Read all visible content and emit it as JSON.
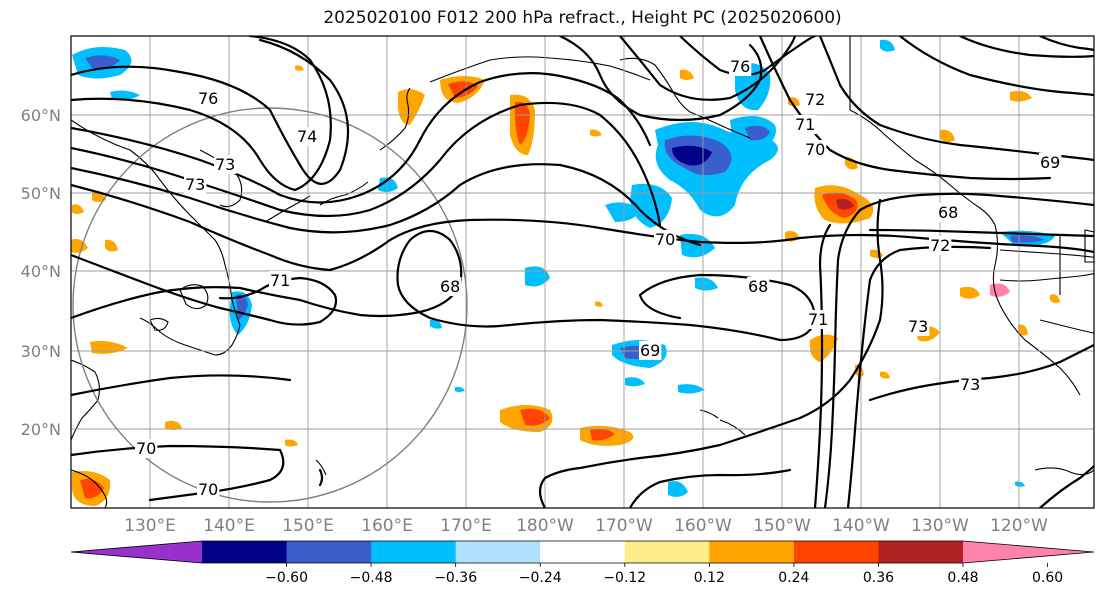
{
  "title": "2025020100 F012 200 hPa refract., Height PC (2025020600)",
  "lat_labels": [
    "60°N",
    "50°N",
    "40°N",
    "30°N",
    "20°N"
  ],
  "lon_labels": [
    "130°E",
    "140°E",
    "150°E",
    "160°E",
    "170°E",
    "180°W",
    "170°W",
    "160°W",
    "150°W",
    "140°W",
    "130°W",
    "120°W"
  ],
  "contour_labels": [
    "76",
    "76",
    "74",
    "73",
    "73",
    "72",
    "71",
    "70",
    "70",
    "69",
    "68",
    "72",
    "71",
    "68",
    "68",
    "69",
    "71",
    "73",
    "73",
    "70",
    "70"
  ],
  "colorbar": {
    "colors": [
      "#9932cc",
      "#00008b",
      "#3a5fcd",
      "#00bfff",
      "#b0e2ff",
      "#ffffff",
      "#ffec8b",
      "#ffa500",
      "#ff4500",
      "#b22222",
      "#ff82ab"
    ],
    "tick_labels": [
      "−0.60",
      "−0.48",
      "−0.36",
      "−0.24",
      "−0.12",
      "0.12",
      "0.24",
      "0.36",
      "0.48",
      "0.60"
    ]
  },
  "palette": {
    "contour": "#000000",
    "grid": "#9e9e9e",
    "circle": "#808080",
    "map_background": "#ffffff"
  }
}
